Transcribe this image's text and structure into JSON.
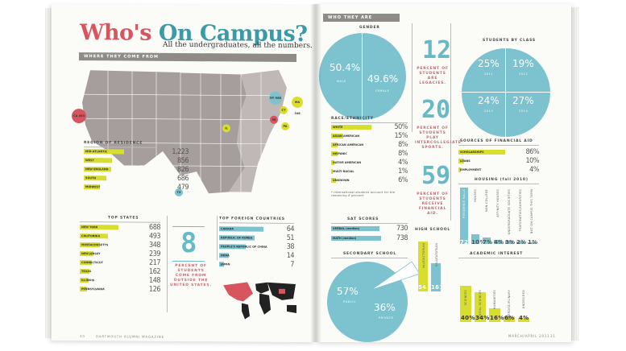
{
  "left": {
    "title_part1": "Who's",
    "title_part2": "On Campus?",
    "subtitle": "All the undergraduates, all the numbers.",
    "section_header": "WHERE THEY COME FROM",
    "region_caption": "REGION OF RESIDENCE",
    "regions": [
      {
        "label": "MID-ATLANTIC",
        "value": "1,223"
      },
      {
        "label": "WEST",
        "value": "856"
      },
      {
        "label": "NEW ENGLAND",
        "value": "826"
      },
      {
        "label": "SOUTH",
        "value": "686"
      },
      {
        "label": "MIDWEST",
        "value": "479"
      }
    ],
    "states_caption": "TOP STATES",
    "states": [
      {
        "label": "NEW YORK",
        "value": "688"
      },
      {
        "label": "CALIFORNIA",
        "value": "493"
      },
      {
        "label": "MASSACHUSETTS",
        "value": "348"
      },
      {
        "label": "NEW JERSEY",
        "value": "239"
      },
      {
        "label": "CONNECTICUT",
        "value": "217"
      },
      {
        "label": "TEXAS",
        "value": "162"
      },
      {
        "label": "ILLINOIS",
        "value": "148"
      },
      {
        "label": "PENNSYLVANIA",
        "value": "126"
      }
    ],
    "percent_value": "8",
    "percent_text": "PERCENT OF STUDENTS COME FROM OUTSIDE THE UNITED STATES.",
    "countries_caption": "TOP FOREIGN COUNTRIES",
    "countries": [
      {
        "label": "CANADA",
        "value": "64"
      },
      {
        "label": "REPUBLIC OF KOREA",
        "value": "51"
      },
      {
        "label": "PEOPLE'S REPUBLIC OF CHINA",
        "value": "38"
      },
      {
        "label": "INDIA",
        "value": "14"
      },
      {
        "label": "JAPAN",
        "value": "7"
      }
    ],
    "map_pins": [
      {
        "label": "CA 493"
      },
      {
        "label": "IL"
      },
      {
        "label": "TX"
      },
      {
        "label": "NY 688"
      },
      {
        "label": "MA 348"
      },
      {
        "label": "CT"
      },
      {
        "label": "NJ"
      },
      {
        "label": "PA"
      }
    ],
    "footer_page": "30",
    "footer_text": "DARTMOUTH ALUMNI MAGAZINE"
  },
  "right": {
    "section_header": "WHO THEY ARE",
    "gender_caption": "GENDER",
    "gender": [
      {
        "value": "50.4%",
        "label": "MALE"
      },
      {
        "value": "49.6%",
        "label": "FEMALE"
      }
    ],
    "stat1_value": "12",
    "stat1_text": "PERCENT OF STUDENTS ARE LEGACIES.",
    "stat2_value": "20",
    "stat2_text": "PERCENT OF STUDENTS PLAY INTERCOLLEGIATE SPORTS.",
    "stat3_value": "59",
    "stat3_text": "PERCENT OF STUDENTS RECEIVE FINANCIAL AID.",
    "class_caption": "STUDENTS BY CLASS",
    "class": [
      {
        "value": "25%",
        "label": "2011"
      },
      {
        "value": "19%",
        "label": "2012"
      },
      {
        "value": "24%",
        "label": "2013"
      },
      {
        "value": "27%",
        "label": "2014"
      }
    ],
    "race_caption": "RACE/ETHNICITY",
    "race": [
      {
        "label": "WHITE",
        "value": "50%"
      },
      {
        "label": "ASIAN AMERICAN",
        "value": "15%"
      },
      {
        "label": "AFRICAN AMERICAN",
        "value": "8%"
      },
      {
        "label": "HISPANIC",
        "value": "8%"
      },
      {
        "label": "NATIVE AMERICAN",
        "value": "4%"
      },
      {
        "label": "MULTI-RACIAL",
        "value": "1%"
      },
      {
        "label": "UNKNOWN",
        "value": "6%"
      }
    ],
    "race_note": "* International students account for the remaining 8 percent.",
    "sat_caption": "SAT SCORES",
    "sat": [
      {
        "label": "VERBAL (median)",
        "value": "730"
      },
      {
        "label": "MATH (median)",
        "value": "738"
      }
    ],
    "secondary_caption": "SECONDARY SCHOOL",
    "secondary": [
      {
        "value": "57%",
        "label": "PUBLIC"
      },
      {
        "value": "36%",
        "label": "PRIVATE"
      }
    ],
    "high_school_caption": "HIGH SCHOOL",
    "high_school": [
      {
        "label": "VALEDICTORIAN",
        "value": "54"
      },
      {
        "label": "SALUTATORIAN",
        "value": "161"
      }
    ],
    "aid_caption": "SOURCES OF FINANCIAL AID",
    "aid": [
      {
        "label": "SCHOLARSHIPS",
        "value": "86%"
      },
      {
        "label": "LOANS",
        "value": "10%"
      },
      {
        "label": "EMPLOYMENT",
        "value": "4%"
      }
    ],
    "housing_caption": "HOUSING (fall 2010)",
    "housing": [
      {
        "label": "RESIDENCE HALLS",
        "value": "72%"
      },
      {
        "label": "HOUSES",
        "value": "10%"
      },
      {
        "label": "NON-COLLEGE",
        "value": "7%"
      },
      {
        "label": "AFFINITY HOUSES",
        "value": "4%"
      },
      {
        "label": "UNDERGRADUATE SOCIETIES",
        "value": "3%"
      },
      {
        "label": "FRATERNITIES/SORORITIES",
        "value": "2%"
      },
      {
        "label": "NOT ON CAMPUS THIS TERM",
        "value": "1%"
      }
    ],
    "interest_caption": "ACADEMIC INTEREST",
    "interest": [
      {
        "label": "SCIENCES",
        "value": "40%"
      },
      {
        "label": "SOCIAL SCIENCES",
        "value": "34%"
      },
      {
        "label": "HUMANITIES",
        "value": "16%"
      },
      {
        "label": "INTERDISCIPLINARY",
        "value": "6%"
      },
      {
        "label": "UNDECIDED",
        "value": "4%"
      }
    ],
    "footer_text": "MARCH/APRIL 2011",
    "footer_page": "31"
  },
  "colors": {
    "yellow": "#d8de2d",
    "teal": "#7cc2cf",
    "red": "#d7555f",
    "map_gray": "#a59e9d"
  }
}
